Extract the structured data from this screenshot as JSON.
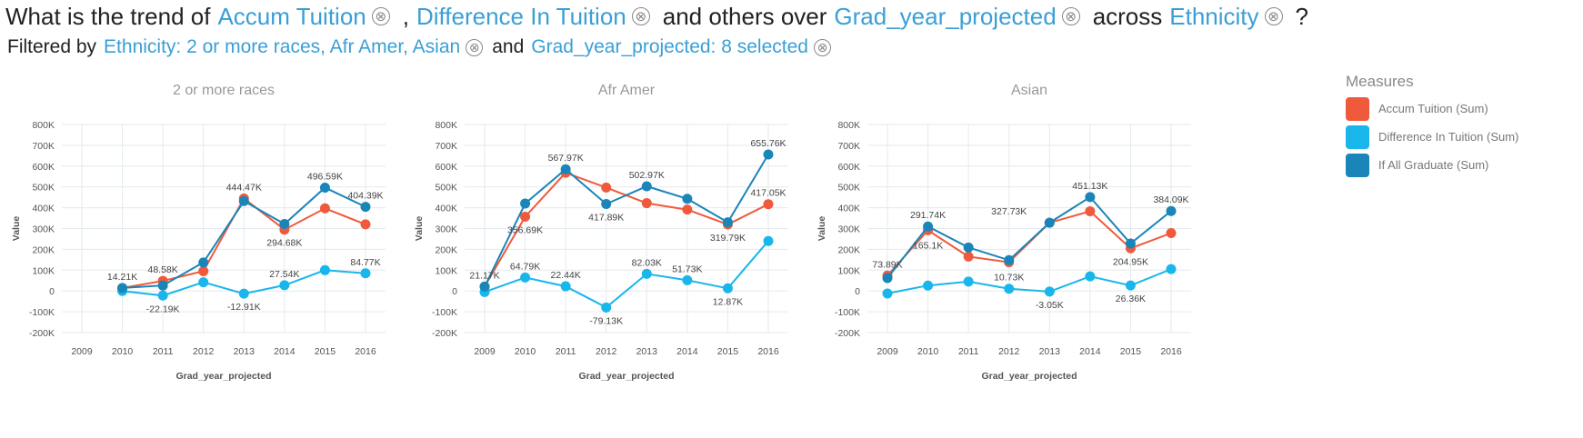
{
  "question": {
    "p1": "What is the trend of",
    "m1": "Accum Tuition",
    "p2": ",",
    "m2": "Difference In Tuition",
    "p3": "and others over",
    "m3": "Grad_year_projected",
    "p4": "across",
    "m4": "Ethnicity",
    "p5": "?",
    "clear_glyph": "⊗"
  },
  "filter": {
    "p1": "Filtered by",
    "f1": "Ethnicity: 2 or more races, Afr Amer, Asian",
    "p2": "and",
    "f2": "Grad_year_projected: 8 selected"
  },
  "legend": {
    "title": "Measures",
    "items": [
      {
        "label": "Accum Tuition (Sum)",
        "color": "#f05a3c"
      },
      {
        "label": "Difference In Tuition (Sum)",
        "color": "#19b6ec"
      },
      {
        "label": "If All Graduate (Sum)",
        "color": "#1a85b8"
      }
    ]
  },
  "chart_data": [
    {
      "type": "line",
      "title": "2 or more races",
      "xlabel": "Grad_year_projected",
      "ylabel": "Value",
      "categories": [
        "2009",
        "2010",
        "2011",
        "2012",
        "2013",
        "2014",
        "2015",
        "2016"
      ],
      "ytick_labels": [
        "-200K",
        "-100K",
        "0",
        "100K",
        "200K",
        "300K",
        "400K",
        "500K",
        "600K",
        "700K",
        "800K"
      ],
      "ylim": [
        -200000,
        800000
      ],
      "grid": true,
      "series": [
        {
          "name": "Accum Tuition (Sum)",
          "color": "#f05a3c",
          "values": [
            null,
            14210,
            48580,
            95000,
            444470,
            294680,
            397000,
            320000
          ]
        },
        {
          "name": "Difference In Tuition (Sum)",
          "color": "#19b6ec",
          "values": [
            null,
            0,
            -22190,
            42000,
            -12910,
            27540,
            100000,
            84770
          ]
        },
        {
          "name": "If All Graduate (Sum)",
          "color": "#1a85b8",
          "values": [
            null,
            14210,
            26000,
            137000,
            432000,
            322000,
            496590,
            404390
          ]
        }
      ],
      "data_labels": [
        {
          "x": "2010",
          "y": 14210,
          "text": "14.21K",
          "pos": "above"
        },
        {
          "x": "2011",
          "y": 48580,
          "text": "48.58K",
          "pos": "above"
        },
        {
          "x": "2011",
          "y": -22190,
          "text": "-22.19K",
          "pos": "below"
        },
        {
          "x": "2013",
          "y": 444470,
          "text": "444.47K",
          "pos": "above"
        },
        {
          "x": "2013",
          "y": -12910,
          "text": "-12.91K",
          "pos": "below"
        },
        {
          "x": "2014",
          "y": 294680,
          "text": "294.68K",
          "pos": "below"
        },
        {
          "x": "2014",
          "y": 27540,
          "text": "27.54K",
          "pos": "above"
        },
        {
          "x": "2015",
          "y": 496590,
          "text": "496.59K",
          "pos": "above"
        },
        {
          "x": "2016",
          "y": 404390,
          "text": "404.39K",
          "pos": "above"
        },
        {
          "x": "2016",
          "y": 84770,
          "text": "84.77K",
          "pos": "above"
        }
      ]
    },
    {
      "type": "line",
      "title": "Afr Amer",
      "xlabel": "Grad_year_projected",
      "ylabel": "Value",
      "categories": [
        "2009",
        "2010",
        "2011",
        "2012",
        "2013",
        "2014",
        "2015",
        "2016"
      ],
      "ytick_labels": [
        "-200K",
        "-100K",
        "0",
        "100K",
        "200K",
        "300K",
        "400K",
        "500K",
        "600K",
        "700K",
        "800K"
      ],
      "ylim": [
        -200000,
        800000
      ],
      "grid": true,
      "series": [
        {
          "name": "Accum Tuition (Sum)",
          "color": "#f05a3c",
          "values": [
            21170,
            356690,
            567970,
            497000,
            422000,
            391000,
            319790,
            417050
          ]
        },
        {
          "name": "Difference In Tuition (Sum)",
          "color": "#19b6ec",
          "values": [
            -5000,
            64790,
            22440,
            -79130,
            82030,
            51730,
            12870,
            240000
          ]
        },
        {
          "name": "If All Graduate (Sum)",
          "color": "#1a85b8",
          "values": [
            21170,
            420000,
            585000,
            417890,
            502970,
            443000,
            330000,
            655760
          ]
        }
      ],
      "data_labels": [
        {
          "x": "2009",
          "y": 21170,
          "text": "21.17K",
          "pos": "above"
        },
        {
          "x": "2010",
          "y": 356690,
          "text": "356.69K",
          "pos": "below"
        },
        {
          "x": "2010",
          "y": 64790,
          "text": "64.79K",
          "pos": "above"
        },
        {
          "x": "2011",
          "y": 585000,
          "text": "567.97K",
          "pos": "above"
        },
        {
          "x": "2011",
          "y": 22440,
          "text": "22.44K",
          "pos": "above"
        },
        {
          "x": "2012",
          "y": 417890,
          "text": "417.89K",
          "pos": "below"
        },
        {
          "x": "2012",
          "y": -79130,
          "text": "-79.13K",
          "pos": "below"
        },
        {
          "x": "2013",
          "y": 502970,
          "text": "502.97K",
          "pos": "above"
        },
        {
          "x": "2013",
          "y": 82030,
          "text": "82.03K",
          "pos": "above"
        },
        {
          "x": "2014",
          "y": 51730,
          "text": "51.73K",
          "pos": "above"
        },
        {
          "x": "2015",
          "y": 319790,
          "text": "319.79K",
          "pos": "below"
        },
        {
          "x": "2015",
          "y": 12870,
          "text": "12.87K",
          "pos": "below"
        },
        {
          "x": "2016",
          "y": 655760,
          "text": "655.76K",
          "pos": "above"
        },
        {
          "x": "2016",
          "y": 417050,
          "text": "417.05K",
          "pos": "above"
        }
      ]
    },
    {
      "type": "line",
      "title": "Asian",
      "xlabel": "Grad_year_projected",
      "ylabel": "Value",
      "categories": [
        "2009",
        "2010",
        "2011",
        "2012",
        "2013",
        "2014",
        "2015",
        "2016"
      ],
      "ytick_labels": [
        "-200K",
        "-100K",
        "0",
        "100K",
        "200K",
        "300K",
        "400K",
        "500K",
        "600K",
        "700K",
        "800K"
      ],
      "ylim": [
        -200000,
        800000
      ],
      "grid": true,
      "series": [
        {
          "name": "Accum Tuition (Sum)",
          "color": "#f05a3c",
          "values": [
            73890,
            291740,
            165100,
            138000,
            327730,
            383000,
            204950,
            278000
          ]
        },
        {
          "name": "Difference In Tuition (Sum)",
          "color": "#19b6ec",
          "values": [
            -12000,
            26000,
            45000,
            10730,
            -3050,
            70000,
            26360,
            105000
          ]
        },
        {
          "name": "If All Graduate (Sum)",
          "color": "#1a85b8",
          "values": [
            62000,
            310000,
            209000,
            148000,
            327730,
            451130,
            228000,
            384090
          ]
        }
      ],
      "data_labels": [
        {
          "x": "2009",
          "y": 73890,
          "text": "73.89K",
          "pos": "above"
        },
        {
          "x": "2010",
          "y": 310000,
          "text": "291.74K",
          "pos": "above"
        },
        {
          "x": "2010",
          "y": 165100,
          "text": "165.1K",
          "pos": "above"
        },
        {
          "x": "2012",
          "y": 10730,
          "text": "10.73K",
          "pos": "above"
        },
        {
          "x": "2012",
          "y": 327730,
          "text": "327.73K",
          "pos": "above"
        },
        {
          "x": "2013",
          "y": -3050,
          "text": "-3.05K",
          "pos": "below"
        },
        {
          "x": "2014",
          "y": 451130,
          "text": "451.13K",
          "pos": "above"
        },
        {
          "x": "2015",
          "y": 204950,
          "text": "204.95K",
          "pos": "below"
        },
        {
          "x": "2015",
          "y": 26360,
          "text": "26.36K",
          "pos": "below"
        },
        {
          "x": "2016",
          "y": 384090,
          "text": "384.09K",
          "pos": "above"
        }
      ]
    }
  ]
}
